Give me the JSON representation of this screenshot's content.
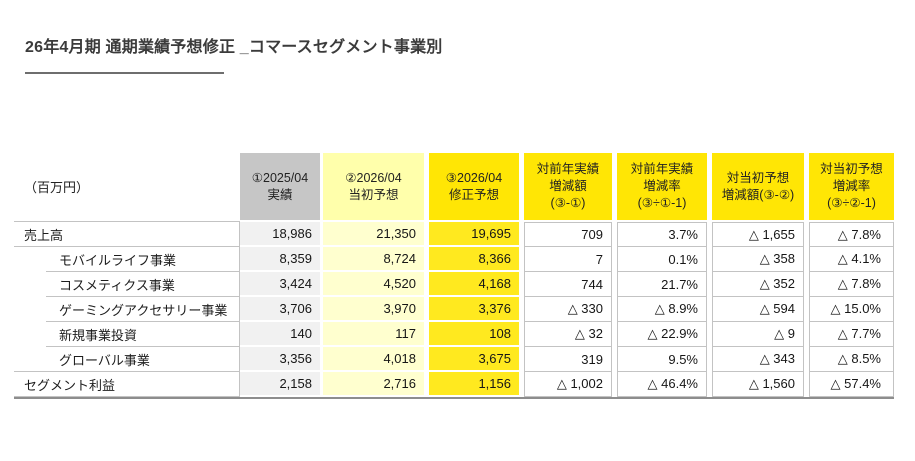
{
  "title": "26年4月期 通期業績予想修正 _コマースセグメント事業別",
  "unit_label": "（百万円）",
  "table": {
    "columns": [
      {
        "id": "fy2025-actual",
        "l1": "①2025/04",
        "l2": "実績"
      },
      {
        "id": "fy2026-initial-forecast",
        "l1": "②2026/04",
        "l2": "当初予想"
      },
      {
        "id": "fy2026-revised-forecast",
        "l1": "③2026/04",
        "l2": "修正予想"
      },
      {
        "id": "yoy-change-amount",
        "l1": "対前年実績",
        "l2": "増減額",
        "l3": "(③-①)"
      },
      {
        "id": "yoy-change-rate",
        "l1": "対前年実績",
        "l2": "増減率",
        "l3": "(③÷①-1)"
      },
      {
        "id": "vs-initial-change-amount",
        "l1": "対当初予想",
        "l2": "増減額(③-②)"
      },
      {
        "id": "vs-initial-change-rate",
        "l1": "対当初予想",
        "l2": "増減率",
        "l3": "(③÷②-1)"
      }
    ],
    "rows": [
      {
        "label": "売上高",
        "level": 0,
        "values": [
          "18,986",
          "21,350",
          "19,695",
          "709",
          "3.7%",
          "△ 1,655",
          "△ 7.8%"
        ]
      },
      {
        "label": "モバイルライフ事業",
        "level": 1,
        "values": [
          "8,359",
          "8,724",
          "8,366",
          "7",
          "0.1%",
          "△ 358",
          "△ 4.1%"
        ]
      },
      {
        "label": "コスメティクス事業",
        "level": 1,
        "values": [
          "3,424",
          "4,520",
          "4,168",
          "744",
          "21.7%",
          "△ 352",
          "△ 7.8%"
        ]
      },
      {
        "label": "ゲーミングアクセサリー事業",
        "level": 1,
        "values": [
          "3,706",
          "3,970",
          "3,376",
          "△ 330",
          "△ 8.9%",
          "△ 594",
          "△ 15.0%"
        ]
      },
      {
        "label": "新規事業投資",
        "level": 1,
        "values": [
          "140",
          "117",
          "108",
          "△ 32",
          "△ 22.9%",
          "△ 9",
          "△ 7.7%"
        ]
      },
      {
        "label": "グローバル事業",
        "level": 1,
        "values": [
          "3,356",
          "4,018",
          "3,675",
          "319",
          "9.5%",
          "△ 343",
          "△ 8.5%"
        ]
      },
      {
        "label": "セグメント利益",
        "level": 0,
        "values": [
          "2,158",
          "2,716",
          "1,156",
          "△ 1,002",
          "△ 46.4%",
          "△ 1,560",
          "△ 57.4%"
        ]
      }
    ]
  },
  "colors": {
    "header_gray": "#c6c6c6",
    "body_gray": "#f1f1f1",
    "header_light_yellow": "#ffffab",
    "body_light_yellow": "#ffffcf",
    "highlight_yellow_header": "#ffe605",
    "highlight_yellow_body": "#ffe91f",
    "grid_border": "#c3c3c3",
    "bottom_rule": "#8d8d8d",
    "title_text": "#3b3b3b"
  }
}
